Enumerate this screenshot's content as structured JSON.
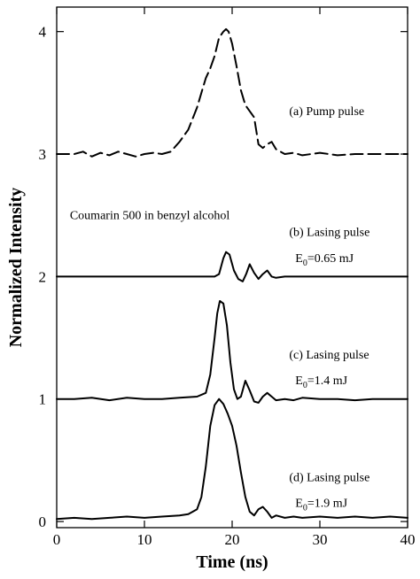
{
  "chart_data": {
    "type": "line",
    "title": "",
    "xlabel": "Time (ns)",
    "ylabel": "Normalized Intensity",
    "xlim": [
      0,
      40
    ],
    "ylim": [
      -0.05,
      4.2
    ],
    "x_ticks": [
      0,
      10,
      20,
      30,
      40
    ],
    "y_ticks": [
      0,
      1,
      2,
      3,
      4
    ],
    "grid": false,
    "legend": "none",
    "series": [
      {
        "style": "dashed",
        "x": [
          0,
          2,
          3,
          4,
          5,
          6,
          7,
          8,
          9,
          10,
          11,
          12,
          13,
          14,
          15,
          16,
          16.5,
          17,
          17.5,
          18,
          18.5,
          19,
          19.3,
          19.6,
          20,
          20.5,
          21,
          21.5,
          22,
          22.5,
          23,
          23.5,
          24,
          24.5,
          25,
          26,
          27,
          28,
          29,
          30,
          32,
          34,
          36,
          38,
          40
        ],
        "y": [
          3.0,
          3.0,
          3.02,
          2.98,
          3.01,
          2.99,
          3.02,
          3.0,
          2.98,
          3.0,
          3.01,
          3.0,
          3.02,
          3.1,
          3.2,
          3.38,
          3.5,
          3.62,
          3.7,
          3.8,
          3.95,
          4.0,
          4.02,
          4.0,
          3.9,
          3.72,
          3.52,
          3.4,
          3.35,
          3.3,
          3.08,
          3.05,
          3.08,
          3.1,
          3.04,
          3.0,
          3.01,
          2.99,
          3.0,
          3.01,
          2.99,
          3.0,
          3.0,
          3.0,
          3.0
        ]
      },
      {
        "style": "solid",
        "x": [
          0,
          5,
          10,
          15,
          18,
          18.5,
          19,
          19.3,
          19.7,
          20.2,
          20.7,
          21.2,
          21.6,
          22,
          22.5,
          23,
          23.5,
          24,
          24.5,
          25,
          26,
          28,
          30,
          35,
          40
        ],
        "y": [
          2.0,
          2.0,
          2.0,
          2.0,
          2.0,
          2.02,
          2.15,
          2.2,
          2.18,
          2.05,
          1.98,
          1.96,
          2.02,
          2.1,
          2.03,
          1.98,
          2.02,
          2.05,
          2.0,
          1.99,
          2.0,
          2.0,
          2.0,
          2.0,
          2.0
        ]
      },
      {
        "style": "solid",
        "x": [
          0,
          2,
          4,
          6,
          8,
          10,
          12,
          14,
          16,
          17,
          17.5,
          18,
          18.3,
          18.6,
          19,
          19.4,
          19.8,
          20.2,
          20.6,
          21,
          21.5,
          22,
          22.5,
          23,
          23.5,
          24,
          24.5,
          25,
          26,
          27,
          28,
          30,
          32,
          34,
          36,
          38,
          40
        ],
        "y": [
          1.0,
          1.0,
          1.01,
          0.99,
          1.01,
          1.0,
          1.0,
          1.01,
          1.02,
          1.05,
          1.2,
          1.5,
          1.7,
          1.8,
          1.78,
          1.6,
          1.3,
          1.08,
          1.0,
          1.02,
          1.15,
          1.07,
          0.98,
          0.97,
          1.02,
          1.05,
          1.02,
          0.99,
          1.0,
          0.99,
          1.01,
          1.0,
          1.0,
          0.99,
          1.0,
          1.0,
          1.0
        ]
      },
      {
        "style": "solid",
        "x": [
          0,
          2,
          4,
          6,
          8,
          10,
          12,
          14,
          15,
          16,
          16.5,
          17,
          17.5,
          18,
          18.5,
          19,
          19.5,
          20,
          20.5,
          21,
          21.5,
          22,
          22.5,
          23,
          23.5,
          24,
          24.5,
          25,
          26,
          27,
          28,
          30,
          32,
          34,
          36,
          38,
          40
        ],
        "y": [
          0.02,
          0.03,
          0.02,
          0.03,
          0.04,
          0.03,
          0.04,
          0.05,
          0.06,
          0.1,
          0.2,
          0.45,
          0.78,
          0.95,
          1.0,
          0.96,
          0.88,
          0.78,
          0.62,
          0.4,
          0.2,
          0.08,
          0.05,
          0.1,
          0.12,
          0.08,
          0.03,
          0.05,
          0.03,
          0.04,
          0.03,
          0.04,
          0.03,
          0.04,
          0.03,
          0.04,
          0.03
        ]
      }
    ],
    "annotations": [
      {
        "text": "(a) Pump pulse",
        "x": 26.5,
        "y": 3.32
      },
      {
        "text": "Coumarin 500 in benzyl alcohol",
        "x": 1.5,
        "y": 2.47
      },
      {
        "text": "(b) Lasing pulse",
        "x": 26.5,
        "y": 2.33
      },
      {
        "text": "E",
        "sub": "0",
        "rest": "=0.65 mJ",
        "x": 27.2,
        "y": 2.12
      },
      {
        "text": "(c) Lasing pulse",
        "x": 26.5,
        "y": 1.33
      },
      {
        "text": "E",
        "sub": "0",
        "rest": "=1.4 mJ",
        "x": 27.2,
        "y": 1.12
      },
      {
        "text": "(d) Lasing pulse",
        "x": 26.5,
        "y": 0.33
      },
      {
        "text": "E",
        "sub": "0",
        "rest": "=1.9 mJ",
        "x": 27.2,
        "y": 0.12
      }
    ]
  }
}
